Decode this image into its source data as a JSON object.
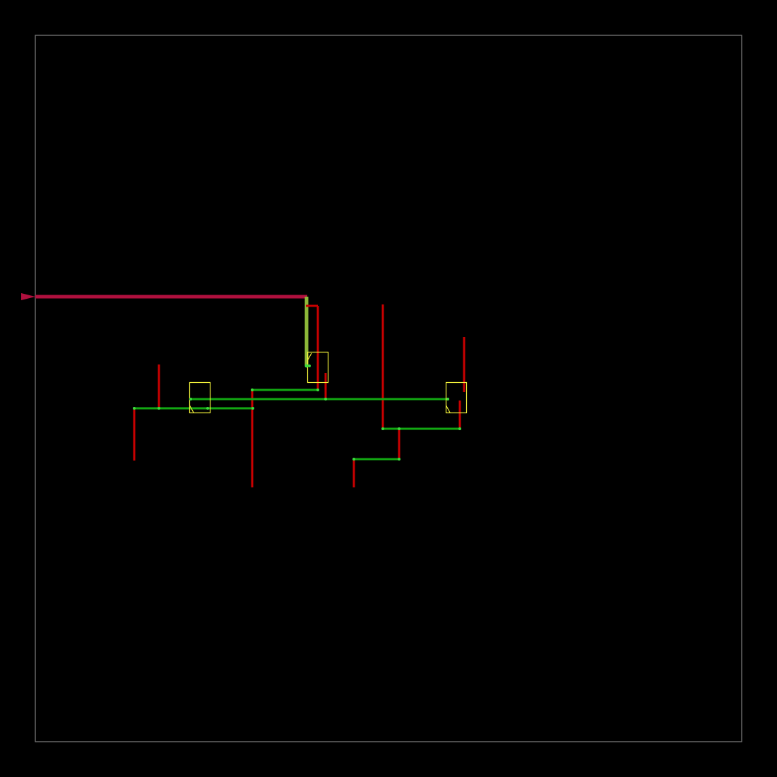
{
  "view": {
    "background_color": "#000000",
    "border_color": "#808080"
  },
  "colors": {
    "clock_net": "#b0103e",
    "clock_trunk": "#8db838",
    "wire_horizontal": "#12a812",
    "wire_vertical": "#c80000",
    "cell_outline": "#f2f23a",
    "pin_dot": "#3cdc3c"
  },
  "icons": {
    "clock_port": "triangle-port-icon",
    "cell": "rectangle-cell-outline",
    "pin": "dot-pin-marker"
  }
}
